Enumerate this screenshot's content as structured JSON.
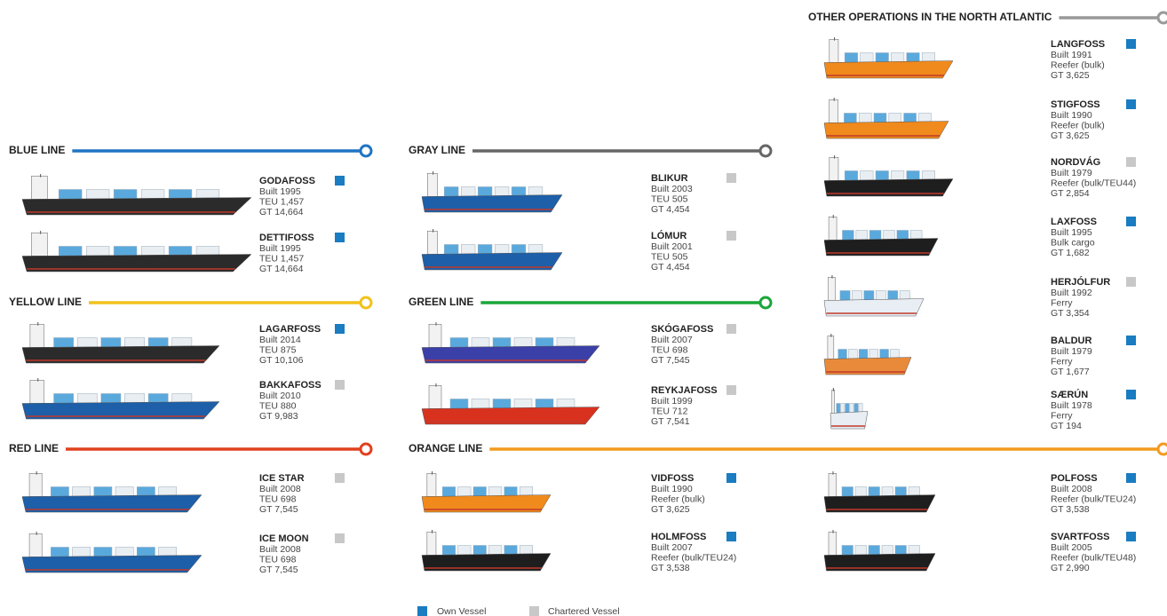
{
  "sections": [
    {
      "title": "BLUE LINE",
      "color": "#1f74c4",
      "vessels": [
        {
          "name": "GODAFOSS",
          "details": [
            "Built 1995",
            "TEU 1,457",
            "GT 14,664"
          ],
          "owned": true,
          "hull": "#2b2b2b"
        },
        {
          "name": "DETTIFOSS",
          "details": [
            "Built 1995",
            "TEU 1,457",
            "GT 14,664"
          ],
          "owned": true,
          "hull": "#2b2b2b"
        }
      ]
    },
    {
      "title": "YELLOW LINE",
      "color": "#f2c21b",
      "vessels": [
        {
          "name": "LAGARFOSS",
          "details": [
            "Built 2014",
            "TEU 875",
            "GT 10,106"
          ],
          "owned": true,
          "hull": "#2b2b2b"
        },
        {
          "name": "BAKKAFOSS",
          "details": [
            "Built 2010",
            "TEU 880",
            "GT 9,983"
          ],
          "owned": false,
          "hull": "#1d5fa8"
        }
      ]
    },
    {
      "title": "RED LINE",
      "color": "#e0401f",
      "vessels": [
        {
          "name": "ICE STAR",
          "details": [
            "Built 2008",
            "TEU 698",
            "GT 7,545"
          ],
          "owned": false,
          "hull": "#1d5fa8"
        },
        {
          "name": "ICE MOON",
          "details": [
            "Built 2008",
            "TEU 698",
            "GT 7,545"
          ],
          "owned": false,
          "hull": "#1d5fa8"
        }
      ]
    },
    {
      "title": "GRAY LINE",
      "color": "#666666",
      "vessels": [
        {
          "name": "BLIKUR",
          "details": [
            "Built 2003",
            "TEU 505",
            "GT 4,454"
          ],
          "owned": false,
          "hull": "#1d5fa8"
        },
        {
          "name": "LÓMUR",
          "details": [
            "Built 2001",
            "TEU 505",
            "GT 4,454"
          ],
          "owned": false,
          "hull": "#1d5fa8"
        }
      ]
    },
    {
      "title": "GREEN LINE",
      "color": "#1aa53a",
      "vessels": [
        {
          "name": "SKÓGAFOSS",
          "details": [
            "Built 2007",
            "TEU 698",
            "GT 7,545"
          ],
          "owned": false,
          "hull": "#3b3fa8"
        },
        {
          "name": "REYKJAFOSS",
          "details": [
            "Built 1999",
            "TEU 712",
            "GT 7,541"
          ],
          "owned": false,
          "hull": "#d8321f"
        }
      ]
    },
    {
      "title": "ORANGE LINE",
      "color": "#f39a1e",
      "vessels": [
        {
          "name": "VIDFOSS",
          "details": [
            "Built 1990",
            "Reefer (bulk)",
            "GT 3,625"
          ],
          "owned": true,
          "hull": "#f08a1c"
        },
        {
          "name": "HOLMFOSS",
          "details": [
            "Built 2007",
            "Reefer (bulk/TEU24)",
            "GT 3,538"
          ],
          "owned": true,
          "hull": "#1e1e1e"
        },
        {
          "name": "POLFOSS",
          "details": [
            "Built 2008",
            "Reefer (bulk/TEU24)",
            "GT 3,538"
          ],
          "owned": true,
          "hull": "#1e1e1e"
        },
        {
          "name": "SVARTFOSS",
          "details": [
            "Built 2005",
            "Reefer (bulk/TEU48)",
            "GT 2,990"
          ],
          "owned": true,
          "hull": "#1e1e1e"
        }
      ]
    },
    {
      "title": "OTHER OPERATIONS IN THE NORTH ATLANTIC",
      "color": "#999999",
      "vessels": [
        {
          "name": "LANGFOSS",
          "details": [
            "Built 1991",
            "Reefer (bulk)",
            "GT 3,625"
          ],
          "owned": true,
          "hull": "#f08a1c"
        },
        {
          "name": "STIGFOSS",
          "details": [
            "Built 1990",
            "Reefer (bulk)",
            "GT 3,625"
          ],
          "owned": true,
          "hull": "#f08a1c"
        },
        {
          "name": "NORDVÁG",
          "details": [
            "Built 1979",
            "Reefer (bulk/TEU44)",
            "GT 2,854"
          ],
          "owned": false,
          "hull": "#1e1e1e"
        },
        {
          "name": "LAXFOSS",
          "details": [
            "Built 1995",
            "Bulk cargo",
            "GT 1,682"
          ],
          "owned": true,
          "hull": "#1e1e1e"
        },
        {
          "name": "HERJÓLFUR",
          "details": [
            "Built 1992",
            "Ferry",
            "GT 3,354"
          ],
          "owned": false,
          "hull": "#e8eef4"
        },
        {
          "name": "BALDUR",
          "details": [
            "Built 1979",
            "Ferry",
            "GT 1,677"
          ],
          "owned": true,
          "hull": "#e98a3a"
        },
        {
          "name": "SÆRÚN",
          "details": [
            "Built 1978",
            "Ferry",
            "GT 194"
          ],
          "owned": true,
          "hull": "#e8eef4"
        }
      ]
    }
  ],
  "legend": {
    "own": "Own Vessel",
    "chartered": "Chartered Vessel",
    "own_color": "#1a7cc1",
    "chartered_color": "#c8c8c8"
  }
}
